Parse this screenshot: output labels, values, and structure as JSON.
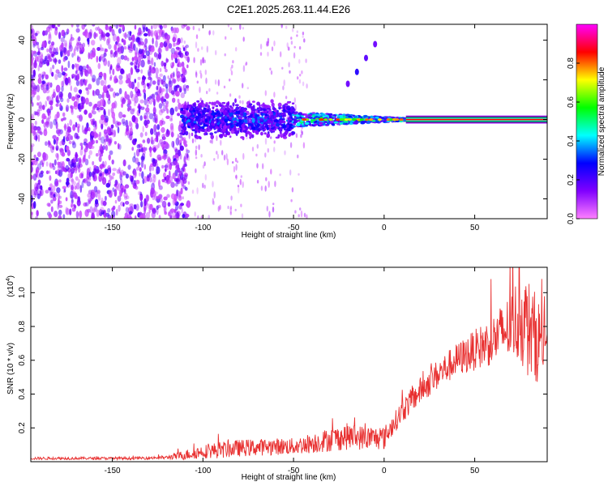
{
  "chart_data": [
    {
      "type": "heatmap",
      "title": "C2E1.2025.263.11.44.E26",
      "xlabel": "Height of straight line (km)",
      "ylabel": "Frequency (Hz)",
      "xlim": [
        -195,
        90
      ],
      "ylim": [
        -50,
        48
      ],
      "xticks": [
        -150,
        -100,
        -50,
        0,
        50
      ],
      "xtick_labels": [
        "-150",
        "-100",
        "-50",
        "0",
        "50"
      ],
      "yticks": [
        -40,
        -20,
        0,
        20,
        40
      ],
      "ytick_labels": [
        "-40",
        "-20",
        "0",
        "20",
        "40"
      ],
      "colorbar": {
        "label": "Normalized spectral amplitude",
        "range": [
          0,
          1
        ],
        "ticks": [
          0.0,
          0.2,
          0.4,
          0.6,
          0.8
        ],
        "tick_labels": [
          "0.0",
          "0.2",
          "0.4",
          "0.6",
          "0.8"
        ],
        "colors": [
          "#ff80ff",
          "#8000ff",
          "#0000ff",
          "#00ffff",
          "#00ff00",
          "#ffff00",
          "#ff0000",
          "#ff00ff"
        ]
      },
      "regions": [
        {
          "name": "noise",
          "x_range": [
            -195,
            -112
          ],
          "freq_range": [
            -50,
            48
          ],
          "amplitude": 0.12
        },
        {
          "name": "transition",
          "x_range": [
            -112,
            -50
          ],
          "freq_range": [
            -10,
            10
          ],
          "amplitude": 0.3
        },
        {
          "name": "carrier",
          "x_range": [
            -50,
            12
          ],
          "freq_center": 0,
          "amplitude": 0.55
        },
        {
          "name": "locked-carrier",
          "x_range": [
            12,
            90
          ],
          "freq_center": 0,
          "amplitude": 0.85
        }
      ],
      "sideband": {
        "x": [
          -20,
          -15,
          -10,
          -5
        ],
        "freq": [
          18,
          24,
          31,
          38
        ]
      }
    },
    {
      "type": "line",
      "title": "",
      "xlabel": "Height of straight line (km)",
      "ylabel": "SNR (10 * v/v)",
      "y_scale_label": "(x10",
      "y_scale_exp": "4",
      "y_scale_close": ")",
      "xlim": [
        -195,
        90
      ],
      "ylim": [
        0,
        1.15
      ],
      "xticks": [
        -150,
        -100,
        -50,
        0,
        50
      ],
      "xtick_labels": [
        "-150",
        "-100",
        "-50",
        "0",
        "50"
      ],
      "yticks": [
        0.2,
        0.4,
        0.6,
        0.8,
        1.0
      ],
      "ytick_labels": [
        "0.2",
        "0.4",
        "0.6",
        "0.8",
        "1.0"
      ],
      "series": [
        {
          "name": "SNR",
          "color": "#e83030",
          "x": [
            -195,
            -180,
            -160,
            -140,
            -120,
            -110,
            -100,
            -90,
            -80,
            -70,
            -60,
            -50,
            -40,
            -30,
            -20,
            -10,
            0,
            5,
            10,
            20,
            30,
            40,
            50,
            60,
            70,
            75,
            80,
            85,
            90
          ],
          "y": [
            0.02,
            0.02,
            0.02,
            0.02,
            0.025,
            0.04,
            0.06,
            0.07,
            0.08,
            0.085,
            0.09,
            0.09,
            0.11,
            0.13,
            0.15,
            0.14,
            0.14,
            0.22,
            0.3,
            0.42,
            0.52,
            0.6,
            0.66,
            0.72,
            0.8,
            0.86,
            0.78,
            0.72,
            0.75
          ],
          "spread": [
            0.008,
            0.008,
            0.008,
            0.008,
            0.01,
            0.03,
            0.04,
            0.05,
            0.05,
            0.05,
            0.05,
            0.05,
            0.06,
            0.07,
            0.08,
            0.07,
            0.07,
            0.06,
            0.07,
            0.08,
            0.09,
            0.1,
            0.12,
            0.15,
            0.2,
            0.28,
            0.3,
            0.25,
            0.2
          ]
        }
      ]
    }
  ]
}
